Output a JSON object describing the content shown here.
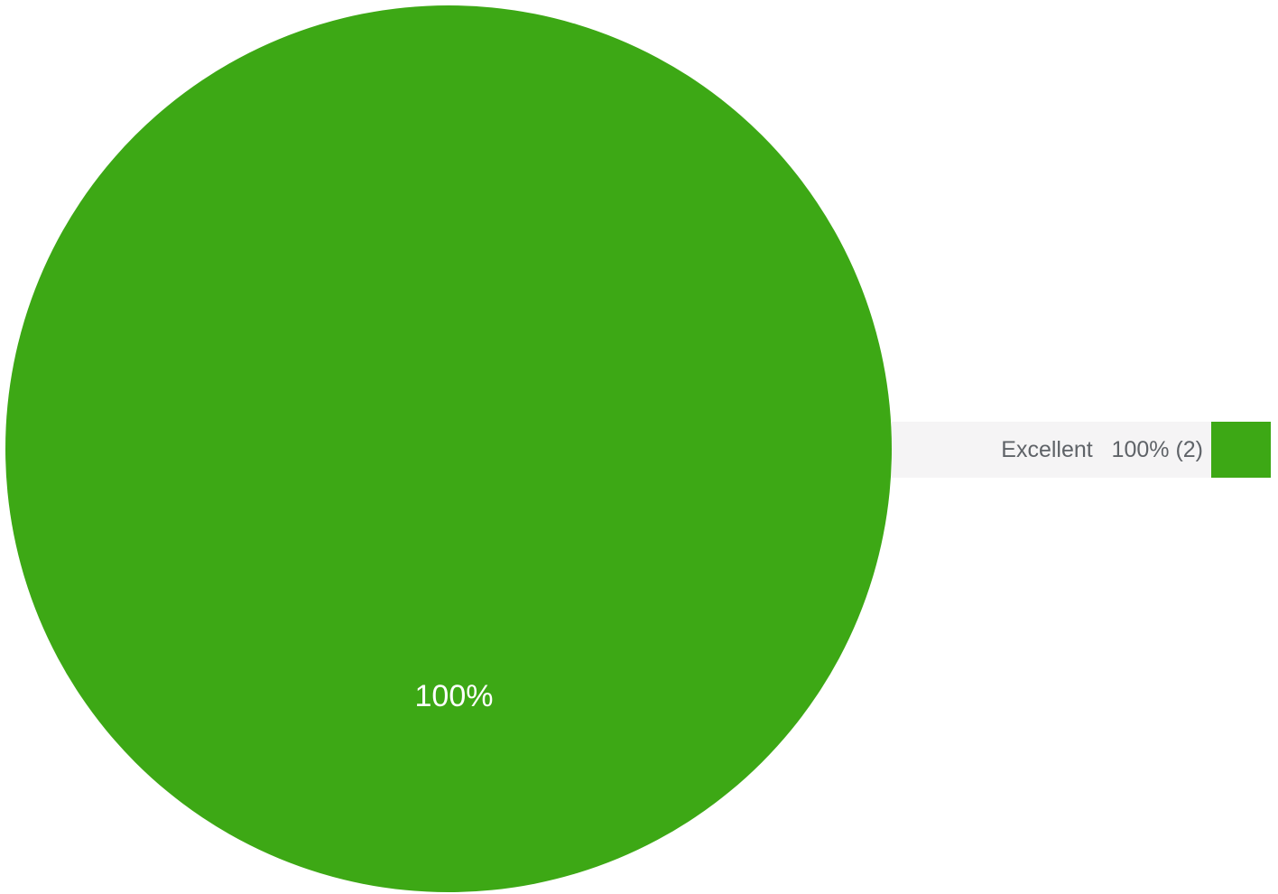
{
  "chart_data": {
    "type": "pie",
    "categories": [
      "Excellent"
    ],
    "values": [
      2
    ],
    "percentages": [
      100
    ],
    "colors": [
      "#3da815"
    ],
    "slice_labels": [
      "100%"
    ],
    "legend": {
      "position": "right",
      "entries": [
        {
          "label": "Excellent",
          "value_text": "100% (2)",
          "color": "#3da815"
        }
      ]
    }
  }
}
